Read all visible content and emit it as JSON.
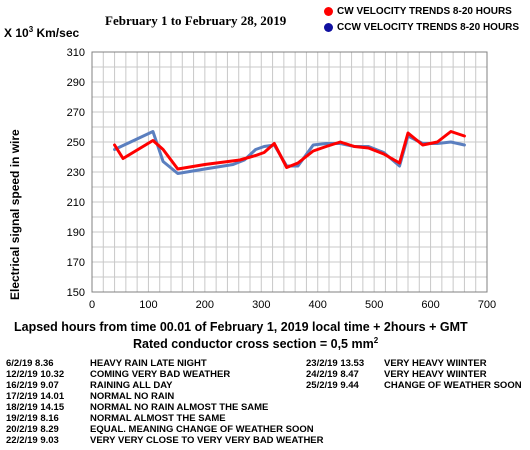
{
  "chart_data": {
    "type": "line",
    "title": "February 1 to February 28, 2019",
    "unit_prefix": "X 10",
    "unit_exp": "3",
    "unit_suffix": " Km/sec",
    "xlabel": "Lapsed hours from time 00.01 of  February 1, 2019  local time  + 2hours + GMT",
    "ylabel": "Electrical signal speed in wire",
    "subtitle_prefix": "Rated conductor cross section = 0,5 mm",
    "subtitle_exp": "2",
    "xlim": [
      0,
      700
    ],
    "ylim": [
      150,
      310
    ],
    "xticks": [
      0,
      100,
      200,
      300,
      400,
      500,
      600,
      700
    ],
    "yticks": [
      150,
      170,
      190,
      210,
      230,
      250,
      270,
      290,
      310
    ],
    "grid": true,
    "legend_position": "top-right",
    "series": [
      {
        "name": "CW VELOCITY TRENDS 8-20 HOURS",
        "color": "#ff0000",
        "dot_color": "#ff0000",
        "x": [
          40,
          55,
          108,
          126,
          152,
          200,
          262,
          290,
          305,
          323,
          345,
          365,
          392,
          415,
          440,
          465,
          490,
          517,
          545,
          560,
          586,
          612,
          636,
          660
        ],
        "y": [
          248,
          239,
          251,
          245,
          232,
          235,
          238,
          241,
          243,
          249,
          233,
          236,
          244,
          247,
          250,
          247,
          246,
          242,
          236,
          256,
          248,
          250,
          257,
          254
        ]
      },
      {
        "name": "CCW VELOCITY TRENDS 8-20 HOURS",
        "color": "#5b7fbf",
        "dot_color": "#1010a0",
        "x": [
          40,
          108,
          126,
          152,
          200,
          250,
          270,
          290,
          305,
          323,
          345,
          365,
          392,
          415,
          440,
          465,
          490,
          517,
          545,
          560,
          586,
          612,
          636,
          660
        ],
        "y": [
          245,
          257,
          237,
          229,
          232,
          235,
          238,
          245,
          247,
          248,
          234,
          234,
          248,
          249,
          249,
          247,
          247,
          243,
          234,
          254,
          249,
          249,
          250,
          248
        ]
      }
    ]
  },
  "notes_left": [
    {
      "date": "6/2/19  8.36",
      "text": "HEAVY RAIN LATE NIGHT"
    },
    {
      "date": "12/2/19 10.32",
      "text": "COMING VERY BAD WEATHER"
    },
    {
      "date": "16/2/19  9.07",
      "text": "RAINING ALL DAY"
    },
    {
      "date": "17/2/19 14.01",
      "text": "NORMAL NO RAIN"
    },
    {
      "date": "18/2/19 14.15",
      "text": "NORMAL NO RAIN ALMOST THE SAME"
    },
    {
      "date": "19/2/19  8.16",
      "text": "NORMAL ALMOST THE SAME"
    },
    {
      "date": "20/2/19  8.29",
      "text": "EQUAL. MEANING CHANGE OF WEATHER SOON"
    },
    {
      "date": "22/2/19  9.03",
      "text": "VERY VERY CLOSE TO VERY VERY BAD WEATHER"
    }
  ],
  "notes_right": [
    {
      "date": "23/2/19 13.53",
      "text": "VERY HEAVY WIINTER"
    },
    {
      "date": "24/2/19  8.47",
      "text": "VERY HEAVY WIINTER"
    },
    {
      "date": "25/2/19  9.44",
      "text": "CHANGE OF WEATHER SOON"
    }
  ]
}
